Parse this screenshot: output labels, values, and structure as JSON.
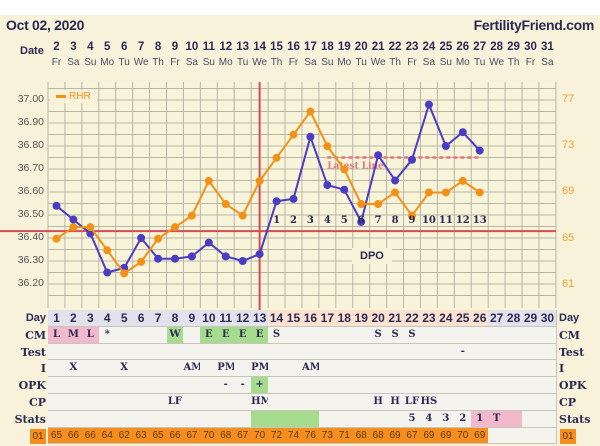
{
  "header": {
    "title": "Oct 02, 2020",
    "brand": "FertilityFriend.com",
    "date_label": "Date"
  },
  "dates": [
    "2",
    "3",
    "4",
    "5",
    "6",
    "7",
    "8",
    "9",
    "10",
    "11",
    "12",
    "13",
    "14",
    "15",
    "16",
    "17",
    "18",
    "19",
    "20",
    "21",
    "22",
    "23",
    "24",
    "25",
    "26",
    "27",
    "28",
    "29",
    "30",
    "31"
  ],
  "weekdays": [
    "Fr",
    "Sa",
    "Su",
    "Mo",
    "Tu",
    "We",
    "Th",
    "Fr",
    "Sa",
    "Su",
    "Mo",
    "Tu",
    "We",
    "Th",
    "Fr",
    "Sa",
    "Su",
    "Mo",
    "Tu",
    "We",
    "Th",
    "Fr",
    "Sa",
    "Su",
    "Mo",
    "Tu",
    "We",
    "Th",
    "Fr",
    "Sa"
  ],
  "colors": {
    "bbt": "#4b3cc4",
    "rhr": "#f39016",
    "coverline": "#d44c55",
    "latest_line": "#e8737a",
    "pink": "#f2b8cc",
    "green": "#a6dc8e",
    "orange": "#f68e1e",
    "day_lavender": "#e2e2ec",
    "day_peach": "#fce3cf"
  },
  "chart_data": {
    "type": "line",
    "legend": {
      "label": "RHR",
      "placement": "top-left"
    },
    "x": [
      1,
      2,
      3,
      4,
      5,
      6,
      7,
      8,
      9,
      10,
      11,
      12,
      13,
      14,
      15,
      16,
      17,
      18,
      19,
      20,
      21,
      22,
      23,
      24,
      25,
      26
    ],
    "series": [
      {
        "axis": "left",
        "values": [
          36.54,
          36.48,
          36.42,
          36.25,
          36.27,
          36.4,
          36.31,
          36.31,
          36.32,
          36.38,
          36.32,
          36.3,
          36.33,
          36.56,
          36.57,
          36.84,
          36.63,
          36.61,
          36.47,
          36.76,
          36.65,
          36.74,
          36.98,
          36.8,
          36.86,
          36.78
        ]
      },
      {
        "name": "RHR",
        "axis": "right",
        "values": [
          65,
          66,
          66,
          64,
          62,
          63,
          65,
          66,
          67,
          70,
          68,
          67,
          70,
          72,
          74,
          76,
          73,
          71,
          68,
          68,
          69,
          67,
          69,
          69,
          70,
          69
        ]
      }
    ],
    "left_axis": {
      "ticks": [
        "37.00",
        "36.90",
        "36.80",
        "36.70",
        "36.60",
        "36.50",
        "36.40",
        "36.30",
        "36.20"
      ],
      "range": [
        36.14,
        37.03
      ]
    },
    "right_axis": {
      "ticks": [
        "77",
        "73",
        "69",
        "65",
        "61"
      ]
    },
    "coverline": 36.43,
    "ovulation_day": 13,
    "latest_line": {
      "label": "Latest Line",
      "value": 36.75,
      "from_day": 17,
      "to_day": 26
    },
    "dpo": {
      "label": "DPO",
      "labels": [
        "1",
        "2",
        "3",
        "4",
        "5",
        "6",
        "7",
        "8",
        "9",
        "10",
        "11",
        "12",
        "13"
      ],
      "start_day": 14
    },
    "grid": true
  },
  "table": {
    "days": [
      "1",
      "2",
      "3",
      "4",
      "5",
      "6",
      "7",
      "8",
      "9",
      "10",
      "11",
      "12",
      "13",
      "14",
      "15",
      "16",
      "17",
      "18",
      "19",
      "20",
      "21",
      "22",
      "23",
      "24",
      "25",
      "26",
      "27",
      "28",
      "29",
      "30"
    ],
    "rows": [
      {
        "label": "CM",
        "cells": [
          "L",
          "M",
          "L",
          "*",
          "",
          "",
          "",
          "W",
          "",
          "E",
          "E",
          "E",
          "E",
          "S",
          "",
          "",
          "",
          "",
          "",
          "S",
          "S",
          "S",
          "",
          "",
          "",
          "",
          "",
          "",
          "",
          ""
        ]
      },
      {
        "label": "Test",
        "cells": [
          "",
          "",
          "",
          "",
          "",
          "",
          "",
          "",
          "",
          "",
          "",
          "",
          "",
          "",
          "",
          "",
          "",
          "",
          "",
          "",
          "",
          "",
          "",
          "",
          "-",
          "",
          "",
          "",
          "",
          ""
        ]
      },
      {
        "label": "I",
        "cells": [
          "",
          "X",
          "",
          "",
          "X",
          "",
          "",
          "",
          "AM",
          "",
          "PM",
          "",
          "PM",
          "",
          "",
          "AM",
          "",
          "",
          "",
          "",
          "",
          "",
          "",
          "",
          "",
          "",
          "",
          "",
          "",
          ""
        ]
      },
      {
        "label": "OPK",
        "cells": [
          "",
          "",
          "",
          "",
          "",
          "",
          "",
          "",
          "",
          "",
          "-",
          "-",
          "+",
          "",
          "",
          "",
          "",
          "",
          "",
          "",
          "",
          "",
          "",
          "",
          "",
          "",
          "",
          "",
          "",
          ""
        ]
      },
      {
        "label": "CP",
        "cells": [
          "",
          "",
          "",
          "",
          "",
          "",
          "",
          "LF",
          "",
          "",
          "",
          "",
          "HM",
          "",
          "",
          "",
          "",
          "",
          "",
          "H",
          "H",
          "LF",
          "HS",
          "",
          "",
          "",
          "",
          "",
          "",
          ""
        ]
      },
      {
        "label": "Stats",
        "cells": [
          "",
          "",
          "",
          "",
          "",
          "",
          "",
          "",
          "",
          "",
          "",
          "",
          "",
          "",
          "",
          "",
          "",
          "",
          "",
          "",
          "",
          "5",
          "4",
          "3",
          "2",
          "1",
          "T",
          "",
          "",
          ""
        ]
      }
    ],
    "day_label": "Day",
    "rhr_label": "01",
    "rhr_values": [
      "65",
      "66",
      "66",
      "64",
      "62",
      "63",
      "65",
      "66",
      "67",
      "70",
      "68",
      "67",
      "70",
      "72",
      "74",
      "76",
      "73",
      "71",
      "68",
      "68",
      "69",
      "67",
      "69",
      "69",
      "70",
      "69",
      "",
      "",
      "",
      ""
    ]
  }
}
